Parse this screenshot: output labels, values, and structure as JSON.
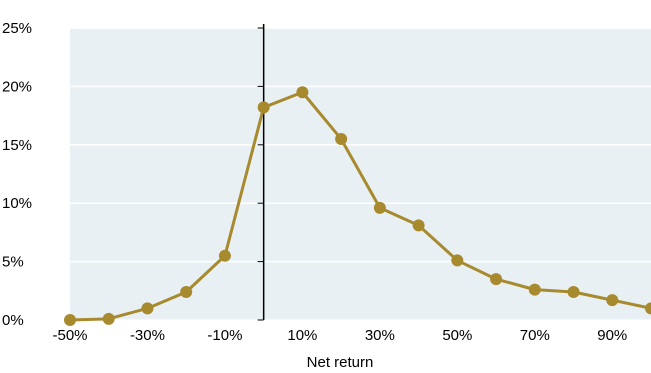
{
  "chart_data": {
    "type": "line",
    "title": "",
    "xlabel": "Net return",
    "ylabel": "",
    "x_unit": "%",
    "x": [
      -50,
      -40,
      -30,
      -20,
      -10,
      0,
      10,
      20,
      30,
      40,
      50,
      60,
      70,
      80,
      90,
      100
    ],
    "series": [
      {
        "values": [
          0.0,
          0.1,
          1.0,
          2.4,
          5.5,
          18.2,
          19.5,
          15.5,
          9.6,
          8.1,
          5.1,
          3.5,
          2.6,
          2.4,
          1.7,
          1.0
        ]
      }
    ],
    "xlim": [
      -50,
      100
    ],
    "ylim": [
      0,
      25
    ],
    "x_tick_labels": [
      "-50%",
      "-30%",
      "-10%",
      "10%",
      "30%",
      "50%",
      "70%",
      "90%"
    ],
    "y_tick_labels": [
      "0%",
      "5%",
      "10%",
      "15%",
      "20%",
      "25%"
    ],
    "grid": "horizontal",
    "legend": "none",
    "colors": {
      "plot_background": "#e8f0f3",
      "series": "#a88a2e",
      "gridline": "#ffffff",
      "axis": "#000000"
    }
  }
}
